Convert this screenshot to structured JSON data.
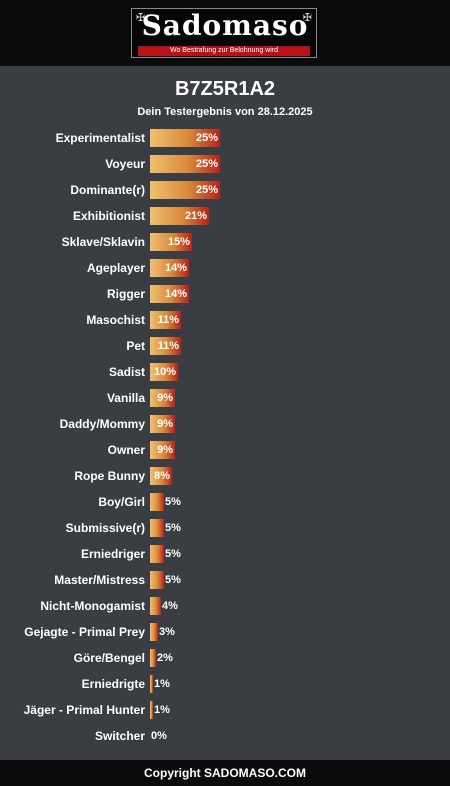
{
  "header": {
    "logo_text": "Sadomaso",
    "logo_tagline": "Wo Bestrafung zur Belohnung wird"
  },
  "footer": {
    "copyright": "Copyright SADOMASO.COM"
  },
  "chart_data": {
    "type": "bar",
    "orientation": "horizontal",
    "title": "B7Z5R1A2",
    "subtitle": "Dein Testergebnis von 28.12.2025",
    "xlim": [
      0,
      100
    ],
    "value_suffix": "%",
    "bar_colors": {
      "start": "#f0c070",
      "mid": "#d9883a",
      "end": "#b4231a"
    },
    "categories": [
      "Experimentalist",
      "Voyeur",
      "Dominante(r)",
      "Exhibitionist",
      "Sklave/Sklavin",
      "Ageplayer",
      "Rigger",
      "Masochist",
      "Pet",
      "Sadist",
      "Vanilla",
      "Daddy/Mommy",
      "Owner",
      "Rope Bunny",
      "Boy/Girl",
      "Submissive(r)",
      "Erniedriger",
      "Master/Mistress",
      "Nicht-Monogamist",
      "Gejagte - Primal Prey",
      "Göre/Bengel",
      "Erniedrigte",
      "Jäger - Primal Hunter",
      "Switcher"
    ],
    "values": [
      25,
      25,
      25,
      21,
      15,
      14,
      14,
      11,
      11,
      10,
      9,
      9,
      9,
      8,
      5,
      5,
      5,
      5,
      4,
      3,
      2,
      1,
      1,
      0
    ]
  }
}
